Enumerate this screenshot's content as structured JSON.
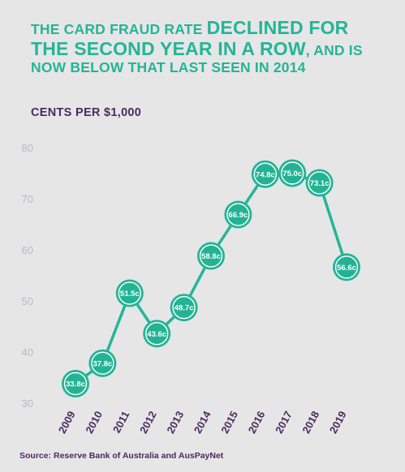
{
  "headline": {
    "part1": "The card fraud rate ",
    "part2": "declined for the second year in a row",
    "part3": ", and is now below that last seen in 2014"
  },
  "unit_label": "CENTS PER $1,000",
  "source": "Source: Reserve Bank of Australia and AusPayNet",
  "colors": {
    "accent": "#24b597",
    "marker_fill": "#23b394",
    "marker_ring": "#ffffff",
    "tick_x": "#4a2a5c",
    "tick_y": "#b7bac0",
    "background": "#e6e6e7"
  },
  "chart_data": {
    "type": "line",
    "x": [
      "2009",
      "2010",
      "2011",
      "2012",
      "2013",
      "2014",
      "2015",
      "2016",
      "2017",
      "2018",
      "2019"
    ],
    "series": [
      {
        "values": [
          33.8,
          37.8,
          51.5,
          43.6,
          48.7,
          58.8,
          66.9,
          74.8,
          75.0,
          73.1,
          56.6
        ],
        "labels": [
          "33.8c",
          "37.8c",
          "51.5c",
          "43.6c",
          "48.7c",
          "58.8c",
          "66.9c",
          "74.8c",
          "75.0c",
          "73.1c",
          "56.6c"
        ]
      }
    ],
    "yticks": [
      30,
      40,
      50,
      60,
      70,
      80
    ],
    "ylim": [
      30,
      80
    ],
    "ylabel": "CENTS PER $1,000",
    "grid": false,
    "legend": "none"
  }
}
